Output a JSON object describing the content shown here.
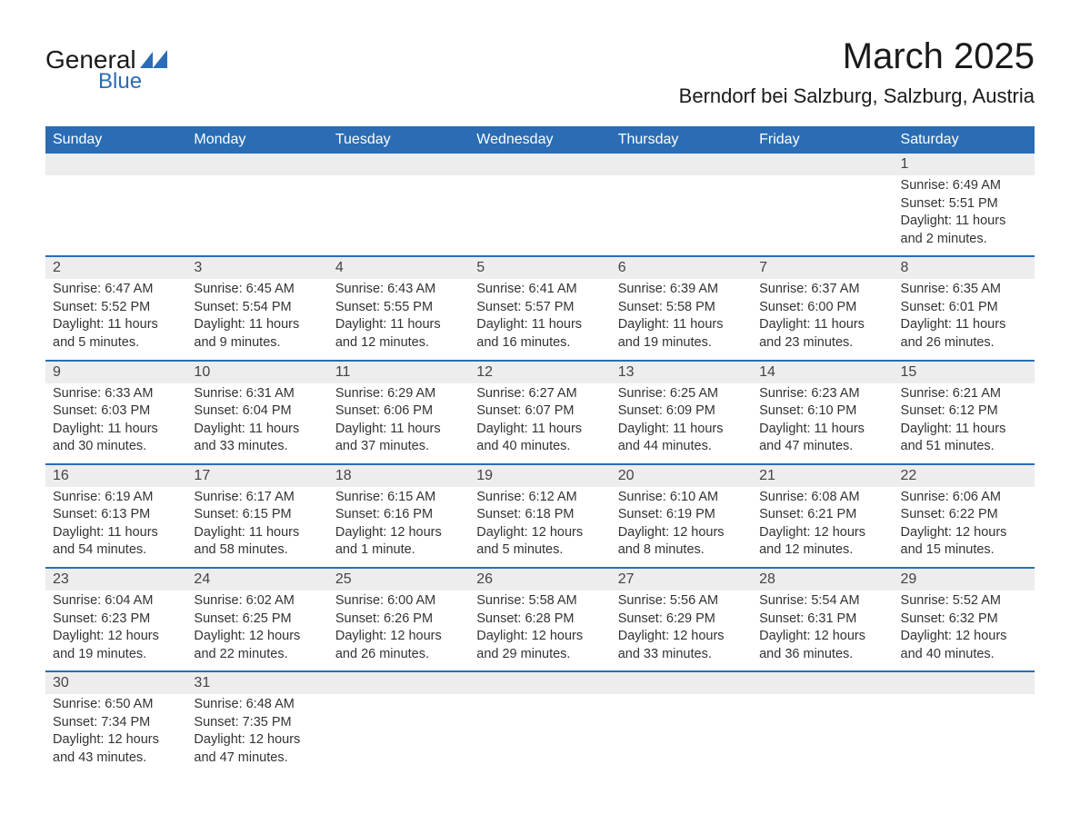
{
  "brand": {
    "text_general": "General",
    "text_blue": "Blue",
    "shape_color": "#2a6db5"
  },
  "title": "March 2025",
  "location": "Berndorf bei Salzburg, Salzburg, Austria",
  "day_headers": [
    "Sunday",
    "Monday",
    "Tuesday",
    "Wednesday",
    "Thursday",
    "Friday",
    "Saturday"
  ],
  "colors": {
    "header_bg": "#2a6db5",
    "header_text": "#ffffff",
    "daynum_bg": "#ededed",
    "row_border": "#2a6db5",
    "body_text": "#333333"
  },
  "weeks": [
    [
      null,
      null,
      null,
      null,
      null,
      null,
      {
        "n": "1",
        "sunrise": "Sunrise: 6:49 AM",
        "sunset": "Sunset: 5:51 PM",
        "dl1": "Daylight: 11 hours",
        "dl2": "and 2 minutes."
      }
    ],
    [
      {
        "n": "2",
        "sunrise": "Sunrise: 6:47 AM",
        "sunset": "Sunset: 5:52 PM",
        "dl1": "Daylight: 11 hours",
        "dl2": "and 5 minutes."
      },
      {
        "n": "3",
        "sunrise": "Sunrise: 6:45 AM",
        "sunset": "Sunset: 5:54 PM",
        "dl1": "Daylight: 11 hours",
        "dl2": "and 9 minutes."
      },
      {
        "n": "4",
        "sunrise": "Sunrise: 6:43 AM",
        "sunset": "Sunset: 5:55 PM",
        "dl1": "Daylight: 11 hours",
        "dl2": "and 12 minutes."
      },
      {
        "n": "5",
        "sunrise": "Sunrise: 6:41 AM",
        "sunset": "Sunset: 5:57 PM",
        "dl1": "Daylight: 11 hours",
        "dl2": "and 16 minutes."
      },
      {
        "n": "6",
        "sunrise": "Sunrise: 6:39 AM",
        "sunset": "Sunset: 5:58 PM",
        "dl1": "Daylight: 11 hours",
        "dl2": "and 19 minutes."
      },
      {
        "n": "7",
        "sunrise": "Sunrise: 6:37 AM",
        "sunset": "Sunset: 6:00 PM",
        "dl1": "Daylight: 11 hours",
        "dl2": "and 23 minutes."
      },
      {
        "n": "8",
        "sunrise": "Sunrise: 6:35 AM",
        "sunset": "Sunset: 6:01 PM",
        "dl1": "Daylight: 11 hours",
        "dl2": "and 26 minutes."
      }
    ],
    [
      {
        "n": "9",
        "sunrise": "Sunrise: 6:33 AM",
        "sunset": "Sunset: 6:03 PM",
        "dl1": "Daylight: 11 hours",
        "dl2": "and 30 minutes."
      },
      {
        "n": "10",
        "sunrise": "Sunrise: 6:31 AM",
        "sunset": "Sunset: 6:04 PM",
        "dl1": "Daylight: 11 hours",
        "dl2": "and 33 minutes."
      },
      {
        "n": "11",
        "sunrise": "Sunrise: 6:29 AM",
        "sunset": "Sunset: 6:06 PM",
        "dl1": "Daylight: 11 hours",
        "dl2": "and 37 minutes."
      },
      {
        "n": "12",
        "sunrise": "Sunrise: 6:27 AM",
        "sunset": "Sunset: 6:07 PM",
        "dl1": "Daylight: 11 hours",
        "dl2": "and 40 minutes."
      },
      {
        "n": "13",
        "sunrise": "Sunrise: 6:25 AM",
        "sunset": "Sunset: 6:09 PM",
        "dl1": "Daylight: 11 hours",
        "dl2": "and 44 minutes."
      },
      {
        "n": "14",
        "sunrise": "Sunrise: 6:23 AM",
        "sunset": "Sunset: 6:10 PM",
        "dl1": "Daylight: 11 hours",
        "dl2": "and 47 minutes."
      },
      {
        "n": "15",
        "sunrise": "Sunrise: 6:21 AM",
        "sunset": "Sunset: 6:12 PM",
        "dl1": "Daylight: 11 hours",
        "dl2": "and 51 minutes."
      }
    ],
    [
      {
        "n": "16",
        "sunrise": "Sunrise: 6:19 AM",
        "sunset": "Sunset: 6:13 PM",
        "dl1": "Daylight: 11 hours",
        "dl2": "and 54 minutes."
      },
      {
        "n": "17",
        "sunrise": "Sunrise: 6:17 AM",
        "sunset": "Sunset: 6:15 PM",
        "dl1": "Daylight: 11 hours",
        "dl2": "and 58 minutes."
      },
      {
        "n": "18",
        "sunrise": "Sunrise: 6:15 AM",
        "sunset": "Sunset: 6:16 PM",
        "dl1": "Daylight: 12 hours",
        "dl2": "and 1 minute."
      },
      {
        "n": "19",
        "sunrise": "Sunrise: 6:12 AM",
        "sunset": "Sunset: 6:18 PM",
        "dl1": "Daylight: 12 hours",
        "dl2": "and 5 minutes."
      },
      {
        "n": "20",
        "sunrise": "Sunrise: 6:10 AM",
        "sunset": "Sunset: 6:19 PM",
        "dl1": "Daylight: 12 hours",
        "dl2": "and 8 minutes."
      },
      {
        "n": "21",
        "sunrise": "Sunrise: 6:08 AM",
        "sunset": "Sunset: 6:21 PM",
        "dl1": "Daylight: 12 hours",
        "dl2": "and 12 minutes."
      },
      {
        "n": "22",
        "sunrise": "Sunrise: 6:06 AM",
        "sunset": "Sunset: 6:22 PM",
        "dl1": "Daylight: 12 hours",
        "dl2": "and 15 minutes."
      }
    ],
    [
      {
        "n": "23",
        "sunrise": "Sunrise: 6:04 AM",
        "sunset": "Sunset: 6:23 PM",
        "dl1": "Daylight: 12 hours",
        "dl2": "and 19 minutes."
      },
      {
        "n": "24",
        "sunrise": "Sunrise: 6:02 AM",
        "sunset": "Sunset: 6:25 PM",
        "dl1": "Daylight: 12 hours",
        "dl2": "and 22 minutes."
      },
      {
        "n": "25",
        "sunrise": "Sunrise: 6:00 AM",
        "sunset": "Sunset: 6:26 PM",
        "dl1": "Daylight: 12 hours",
        "dl2": "and 26 minutes."
      },
      {
        "n": "26",
        "sunrise": "Sunrise: 5:58 AM",
        "sunset": "Sunset: 6:28 PM",
        "dl1": "Daylight: 12 hours",
        "dl2": "and 29 minutes."
      },
      {
        "n": "27",
        "sunrise": "Sunrise: 5:56 AM",
        "sunset": "Sunset: 6:29 PM",
        "dl1": "Daylight: 12 hours",
        "dl2": "and 33 minutes."
      },
      {
        "n": "28",
        "sunrise": "Sunrise: 5:54 AM",
        "sunset": "Sunset: 6:31 PM",
        "dl1": "Daylight: 12 hours",
        "dl2": "and 36 minutes."
      },
      {
        "n": "29",
        "sunrise": "Sunrise: 5:52 AM",
        "sunset": "Sunset: 6:32 PM",
        "dl1": "Daylight: 12 hours",
        "dl2": "and 40 minutes."
      }
    ],
    [
      {
        "n": "30",
        "sunrise": "Sunrise: 6:50 AM",
        "sunset": "Sunset: 7:34 PM",
        "dl1": "Daylight: 12 hours",
        "dl2": "and 43 minutes."
      },
      {
        "n": "31",
        "sunrise": "Sunrise: 6:48 AM",
        "sunset": "Sunset: 7:35 PM",
        "dl1": "Daylight: 12 hours",
        "dl2": "and 47 minutes."
      },
      null,
      null,
      null,
      null,
      null
    ]
  ]
}
